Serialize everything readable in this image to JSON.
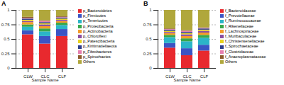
{
  "chart_data": [
    {
      "type": "bar",
      "title": "A",
      "x_label": "Sample Name",
      "stacked": true,
      "grid": true,
      "legend": "right",
      "categories": [
        "CLW",
        "CLC",
        "CLF"
      ],
      "ylim": [
        0,
        1
      ],
      "yticks": [
        0,
        0.25,
        0.5,
        0.75,
        1
      ],
      "series": [
        {
          "name": "p_Bacteroidetes",
          "color": "#e8292e",
          "values": [
            0.58,
            0.42,
            0.55
          ]
        },
        {
          "name": "p_Firmicutes",
          "color": "#3b54c4",
          "values": [
            0.07,
            0.13,
            0.12
          ]
        },
        {
          "name": "p_Tenericutes",
          "color": "#2bb5c8",
          "values": [
            0.06,
            0.08,
            0.07
          ]
        },
        {
          "name": "p_Proteobacteria",
          "color": "#38a84b",
          "values": [
            0.04,
            0.05,
            0.04
          ]
        },
        {
          "name": "p_Actinobacteria",
          "color": "#f39c28",
          "values": [
            0.04,
            0.04,
            0.03
          ]
        },
        {
          "name": "p_Chloroflexi",
          "color": "#8b4da0",
          "values": [
            0.02,
            0.03,
            0.02
          ]
        },
        {
          "name": "p_Patescibacteria",
          "color": "#e8d21e",
          "values": [
            0.02,
            0.02,
            0.02
          ]
        },
        {
          "name": "p_Kiritimatiellaeota",
          "color": "#2c3e8c",
          "values": [
            0.02,
            0.02,
            0.02
          ]
        },
        {
          "name": "p_Fibrobacteres",
          "color": "#e67fb0",
          "values": [
            0.01,
            0.02,
            0.01
          ]
        },
        {
          "name": "p_Spirochaetes",
          "color": "#8c5a2b",
          "values": [
            0.02,
            0.01,
            0.01
          ]
        },
        {
          "name": "Others",
          "color": "#b0a73c",
          "values": [
            0.12,
            0.18,
            0.11
          ]
        }
      ]
    },
    {
      "type": "bar",
      "title": "B",
      "x_label": "Sample Name",
      "stacked": true,
      "grid": true,
      "legend": "right",
      "categories": [
        "CLW",
        "CLC",
        "CLF"
      ],
      "ylim": [
        0,
        1
      ],
      "yticks": [
        0,
        0.25,
        0.5,
        0.75,
        1
      ],
      "series": [
        {
          "name": "f_Bacteroidaceae",
          "color": "#e8292e",
          "values": [
            0.35,
            0.22,
            0.3
          ]
        },
        {
          "name": "f_Prevotellaceae",
          "color": "#3b54c4",
          "values": [
            0.08,
            0.12,
            0.1
          ]
        },
        {
          "name": "f_Ruminococcaceae",
          "color": "#2bb5c8",
          "values": [
            0.1,
            0.12,
            0.12
          ]
        },
        {
          "name": "f_Rikenellaceae",
          "color": "#38a84b",
          "values": [
            0.04,
            0.05,
            0.05
          ]
        },
        {
          "name": "f_Lachnospiraceae",
          "color": "#f39c28",
          "values": [
            0.03,
            0.04,
            0.04
          ]
        },
        {
          "name": "f_Muribaculaceae",
          "color": "#8b4da0",
          "values": [
            0.02,
            0.03,
            0.03
          ]
        },
        {
          "name": "f_Christensenellaceae",
          "color": "#e8d21e",
          "values": [
            0.02,
            0.02,
            0.02
          ]
        },
        {
          "name": "f_Spirochaetaceae",
          "color": "#2c3e8c",
          "values": [
            0.02,
            0.02,
            0.02
          ]
        },
        {
          "name": "f_Clostridiaceae",
          "color": "#e67fb0",
          "values": [
            0.01,
            0.02,
            0.01
          ]
        },
        {
          "name": "f_Anaeroplasmataceae",
          "color": "#8c5a2b",
          "values": [
            0.01,
            0.01,
            0.01
          ]
        },
        {
          "name": "Others",
          "color": "#b0a73c",
          "values": [
            0.32,
            0.35,
            0.3
          ]
        }
      ]
    }
  ]
}
